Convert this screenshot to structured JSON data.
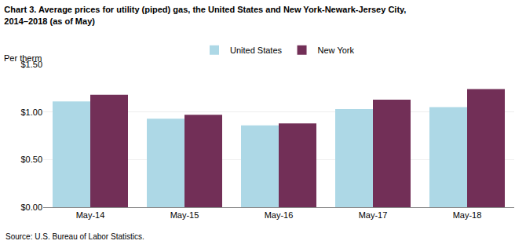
{
  "chart_data": {
    "type": "bar",
    "title": "Chart 3. Average prices for utility (piped) gas, the United States and New York-Newark-Jersey City,\n2014–2018 (as of May)",
    "ylabel": "Per therm",
    "annotations": [
      "Source: U.S. Bureau of Labor Statistics."
    ],
    "categories": [
      "May-14",
      "May-15",
      "May-16",
      "May-17",
      "May-18"
    ],
    "series": [
      {
        "name": "United States",
        "color": "#ADD8E6",
        "values": [
          1.11,
          0.93,
          0.86,
          1.03,
          1.05
        ]
      },
      {
        "name": "New York",
        "color": "#722F57",
        "values": [
          1.18,
          0.97,
          0.88,
          1.13,
          1.24
        ]
      }
    ],
    "ylim": [
      0.0,
      1.5
    ],
    "yticks": [
      {
        "value": 0.0,
        "label": "$0.00"
      },
      {
        "value": 0.5,
        "label": "$0.50"
      },
      {
        "value": 1.0,
        "label": "$1.00"
      },
      {
        "value": 1.5,
        "label": "$1.50"
      }
    ],
    "grid": true,
    "legend": "top"
  }
}
